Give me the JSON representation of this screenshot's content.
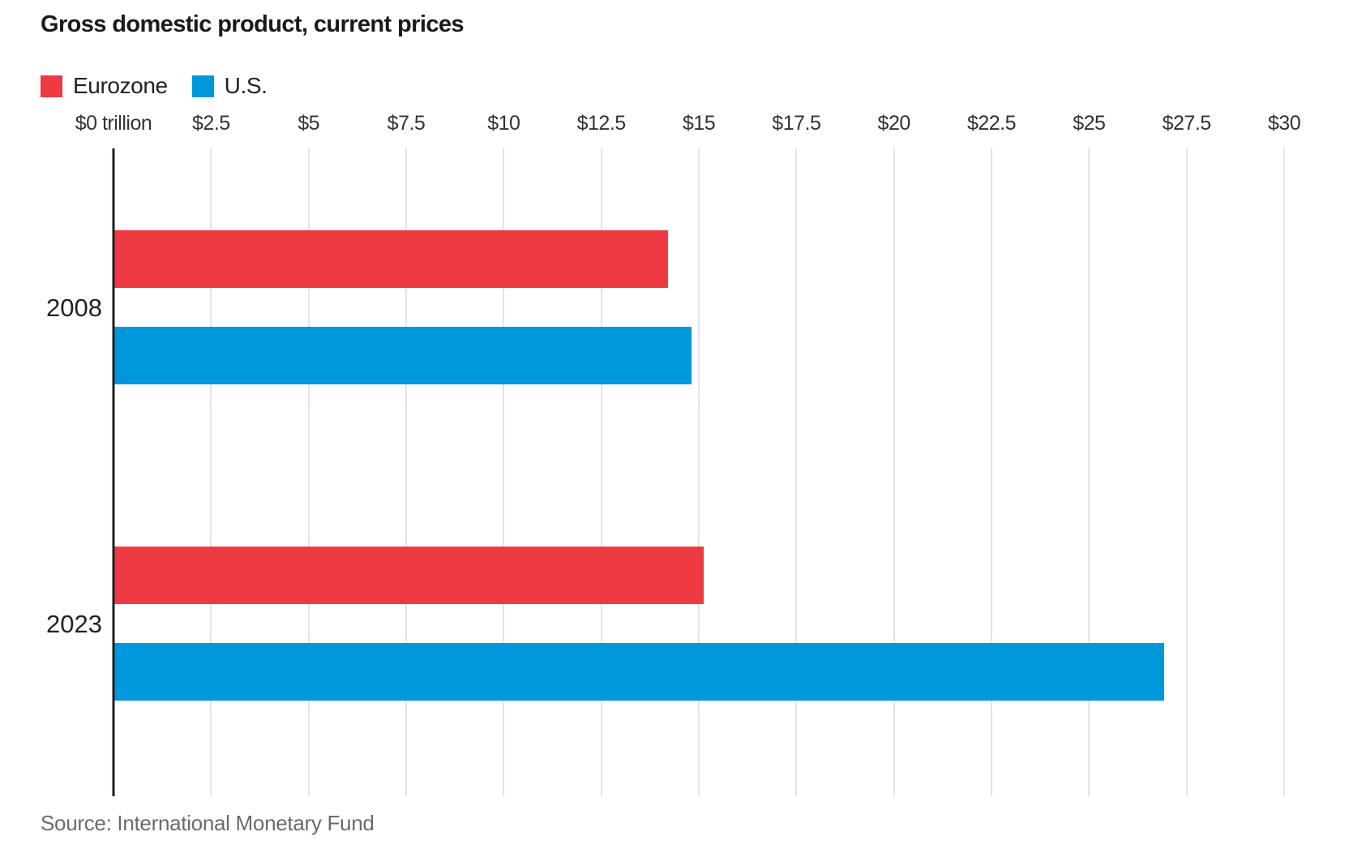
{
  "chart_data": {
    "type": "bar",
    "orientation": "horizontal",
    "title": "Gross domestic product, current prices",
    "source": "Source: International Monetary Fund",
    "categories": [
      "2008",
      "2023"
    ],
    "series": [
      {
        "name": "Eurozone",
        "color": "#ee3b43",
        "values": [
          14.2,
          15.1
        ]
      },
      {
        "name": "U.S.",
        "color": "#0098db",
        "values": [
          14.8,
          26.9
        ]
      }
    ],
    "x_axis": {
      "unit": "trillion USD",
      "min": 0,
      "max": 30,
      "tick_values": [
        0,
        2.5,
        5,
        7.5,
        10,
        12.5,
        15,
        17.5,
        20,
        22.5,
        25,
        27.5,
        30
      ],
      "tick_labels": [
        "$0 trillion",
        "$2.5",
        "$5",
        "$7.5",
        "$10",
        "$12.5",
        "$15",
        "$17.5",
        "$20",
        "$22.5",
        "$25",
        "$27.5",
        "$30"
      ],
      "grid": true
    },
    "legend_position": "top-left",
    "colors": {
      "eurozone_red": "#ee3b43",
      "us_blue": "#0098db",
      "axis": "#1f1f1f",
      "gridline": "#e4e4e4",
      "source_text": "#6b6b6b"
    }
  }
}
